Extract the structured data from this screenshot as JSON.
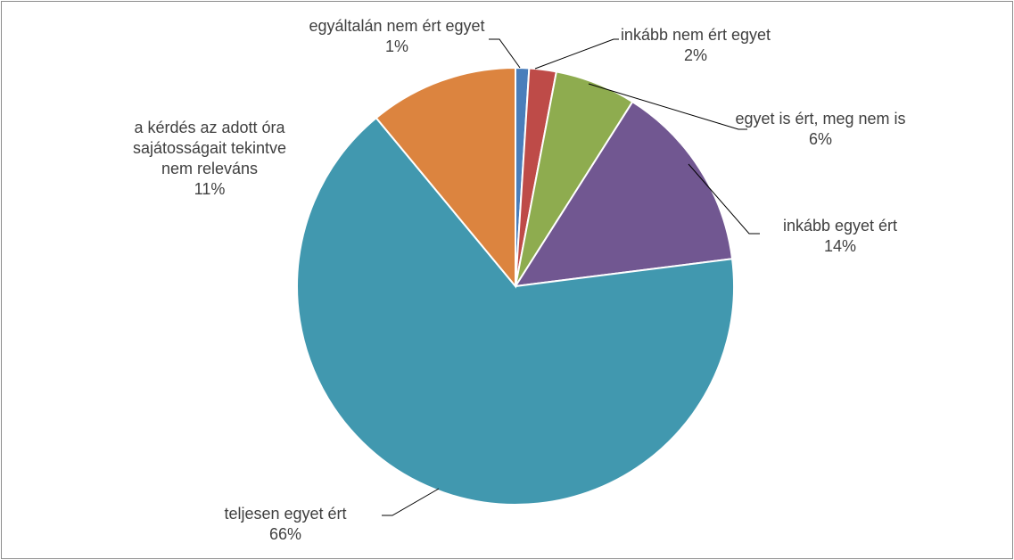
{
  "chart_data": {
    "type": "pie",
    "categories": [
      "egyáltalán nem ért egyet",
      "inkább nem ért egyet",
      "egyet is ért, meg nem is",
      "inkább egyet ért",
      "teljesen egyet ért",
      "a kérdés az adott óra sajátosságait tekintve nem releváns"
    ],
    "values": [
      1,
      2,
      6,
      14,
      66,
      11
    ],
    "value_labels": [
      "1%",
      "2%",
      "6%",
      "14%",
      "66%",
      "11%"
    ],
    "colors": [
      "#4a7ebb",
      "#be4b48",
      "#8eac4f",
      "#715791",
      "#4198af",
      "#dc843f"
    ]
  }
}
